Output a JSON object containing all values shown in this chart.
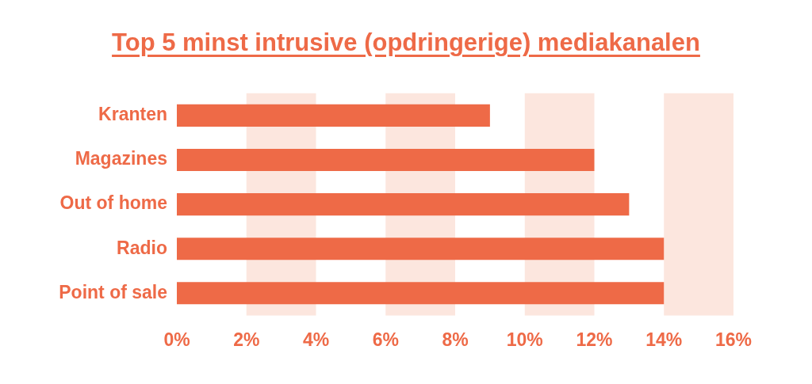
{
  "chart_data": {
    "type": "bar",
    "orientation": "horizontal",
    "title": "Top 5 minst intrusive (opdringerige) mediakanalen",
    "categories": [
      "Kranten",
      "Magazines",
      "Out of home",
      "Radio",
      "Point of sale"
    ],
    "values": [
      9,
      12,
      13,
      14,
      14
    ],
    "color": "#ee6a47",
    "xlim": [
      0,
      16
    ],
    "xticks": [
      {
        "value": 0,
        "label": "0%"
      },
      {
        "value": 2,
        "label": "2%"
      },
      {
        "value": 4,
        "label": "4%"
      },
      {
        "value": 6,
        "label": "6%"
      },
      {
        "value": 8,
        "label": "8%"
      },
      {
        "value": 10,
        "label": "10%"
      },
      {
        "value": 12,
        "label": "12%"
      },
      {
        "value": 14,
        "label": "14%"
      },
      {
        "value": 16,
        "label": "16%"
      }
    ],
    "bands": [
      {
        "axis": "x",
        "from": 2,
        "to": 4,
        "color": "#fce6de"
      },
      {
        "axis": "x",
        "from": 6,
        "to": 8,
        "color": "#fce6de"
      },
      {
        "axis": "x",
        "from": 10,
        "to": 12,
        "color": "#fce6de"
      },
      {
        "axis": "x",
        "from": 14,
        "to": 16,
        "color": "#fce6de"
      }
    ],
    "grid": false,
    "legend": false
  }
}
